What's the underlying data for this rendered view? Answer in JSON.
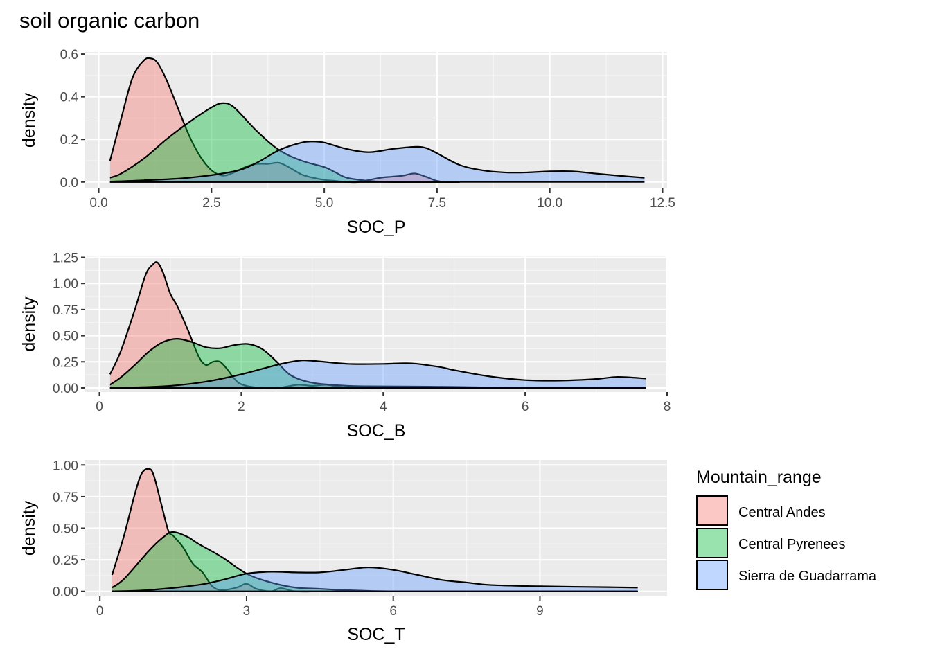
{
  "title": "soil organic carbon",
  "legend": {
    "title": "Mountain_range",
    "position": "right",
    "entries": [
      {
        "name": "Central Andes",
        "color": "#F8766D"
      },
      {
        "name": "Central Pyrenees",
        "color": "#00BA38"
      },
      {
        "name": "Sierra de Guadarrama",
        "color": "#619CFF"
      }
    ]
  },
  "chart_data": [
    {
      "type": "area",
      "xlabel": "SOC_P",
      "ylabel": "density",
      "xlim": [
        -0.3,
        12.6
      ],
      "ylim": [
        -0.03,
        0.61
      ],
      "xticks": [
        0,
        2.5,
        5,
        7.5,
        10,
        12.5
      ],
      "xtick_labels": [
        "0.0",
        "2.5",
        "5.0",
        "7.5",
        "10.0",
        "12.5"
      ],
      "yticks": [
        0,
        0.2,
        0.4,
        0.6
      ],
      "ytick_labels": [
        "0.0",
        "0.2",
        "0.4",
        "0.6"
      ],
      "grid": true,
      "series": [
        {
          "name": "Central Andes",
          "x": [
            0.25,
            0.5,
            0.75,
            1.0,
            1.15,
            1.3,
            1.5,
            1.75,
            2.0,
            2.25,
            2.5,
            2.75,
            3.0,
            3.25,
            3.5,
            3.75,
            4.0,
            4.25,
            4.5,
            4.75,
            5.0,
            5.25,
            5.5,
            5.75,
            6.0,
            6.25,
            6.5,
            6.75,
            7.0,
            7.25,
            7.5,
            7.75,
            8.0
          ],
          "y": [
            0.1,
            0.3,
            0.49,
            0.57,
            0.58,
            0.56,
            0.48,
            0.35,
            0.22,
            0.12,
            0.055,
            0.03,
            0.045,
            0.07,
            0.085,
            0.085,
            0.09,
            0.065,
            0.035,
            0.02,
            0.01,
            0.005,
            0.0,
            0.0,
            0.01,
            0.02,
            0.025,
            0.03,
            0.04,
            0.025,
            0.005,
            0.0,
            0.0
          ]
        },
        {
          "name": "Central Pyrenees",
          "x": [
            0.25,
            0.5,
            1.0,
            1.5,
            2.0,
            2.5,
            2.75,
            3.0,
            3.5,
            4.0,
            4.5,
            5.0,
            5.25,
            5.5,
            6.0,
            6.5,
            7.0,
            7.5,
            8.0
          ],
          "y": [
            0.02,
            0.04,
            0.11,
            0.2,
            0.28,
            0.35,
            0.37,
            0.35,
            0.24,
            0.15,
            0.1,
            0.07,
            0.045,
            0.02,
            0.005,
            0.0,
            0.0,
            0.0,
            0.0
          ]
        },
        {
          "name": "Sierra de Guadarrama",
          "x": [
            0.25,
            1.0,
            2.0,
            3.0,
            3.5,
            4.0,
            4.5,
            4.75,
            5.0,
            5.5,
            6.0,
            6.5,
            7.0,
            7.25,
            7.5,
            8.0,
            8.5,
            9.0,
            9.5,
            10.0,
            10.5,
            11.0,
            11.5,
            12.1
          ],
          "y": [
            0.002,
            0.008,
            0.02,
            0.05,
            0.09,
            0.15,
            0.185,
            0.19,
            0.185,
            0.155,
            0.14,
            0.155,
            0.165,
            0.16,
            0.135,
            0.08,
            0.055,
            0.045,
            0.045,
            0.05,
            0.05,
            0.04,
            0.03,
            0.02
          ]
        }
      ]
    },
    {
      "type": "area",
      "xlabel": "SOC_B",
      "ylabel": "density",
      "xlim": [
        -0.2,
        8.0
      ],
      "ylim": [
        -0.04,
        1.26
      ],
      "xticks": [
        0,
        2,
        4,
        6,
        8
      ],
      "xtick_labels": [
        "0",
        "2",
        "4",
        "6",
        "8"
      ],
      "yticks": [
        0,
        0.25,
        0.5,
        0.75,
        1.0,
        1.25
      ],
      "ytick_labels": [
        "0.00",
        "0.25",
        "0.50",
        "0.75",
        "1.00",
        "1.25"
      ],
      "grid": true,
      "series": [
        {
          "name": "Central Andes",
          "x": [
            0.15,
            0.3,
            0.5,
            0.65,
            0.75,
            0.82,
            0.9,
            1.0,
            1.1,
            1.25,
            1.4,
            1.5,
            1.6,
            1.7,
            1.8,
            1.9,
            2.0,
            2.2,
            2.5,
            2.8,
            3.0,
            3.2,
            3.5,
            4.0,
            5.0,
            6.0,
            7.7
          ],
          "y": [
            0.13,
            0.35,
            0.75,
            1.08,
            1.18,
            1.2,
            1.1,
            0.9,
            0.78,
            0.55,
            0.3,
            0.22,
            0.25,
            0.25,
            0.18,
            0.09,
            0.035,
            0.005,
            0.0,
            0.03,
            0.02,
            0.03,
            0.0,
            0.0,
            0.0,
            0.0,
            0.0
          ]
        },
        {
          "name": "Central Pyrenees",
          "x": [
            0.15,
            0.3,
            0.5,
            0.7,
            0.9,
            1.1,
            1.3,
            1.5,
            1.7,
            1.9,
            2.1,
            2.3,
            2.5,
            2.7,
            3.0,
            3.5,
            4.0,
            5.0,
            6.0,
            7.7
          ],
          "y": [
            0.03,
            0.1,
            0.22,
            0.35,
            0.44,
            0.47,
            0.44,
            0.39,
            0.38,
            0.41,
            0.42,
            0.37,
            0.25,
            0.12,
            0.05,
            0.02,
            0.015,
            0.01,
            0.0,
            0.0
          ]
        },
        {
          "name": "Sierra de Guadarrama",
          "x": [
            0.15,
            0.5,
            1.0,
            1.5,
            2.0,
            2.5,
            2.8,
            3.0,
            3.5,
            4.0,
            4.4,
            4.8,
            5.0,
            5.5,
            6.0,
            6.5,
            7.0,
            7.3,
            7.7
          ],
          "y": [
            0.0,
            0.005,
            0.02,
            0.06,
            0.13,
            0.22,
            0.26,
            0.26,
            0.23,
            0.23,
            0.235,
            0.2,
            0.17,
            0.11,
            0.075,
            0.07,
            0.085,
            0.105,
            0.09
          ]
        }
      ]
    },
    {
      "type": "area",
      "xlabel": "SOC_T",
      "ylabel": "density",
      "xlim": [
        -0.3,
        11.6
      ],
      "ylim": [
        -0.04,
        1.04
      ],
      "xticks": [
        0,
        3,
        6,
        9
      ],
      "xtick_labels": [
        "0",
        "3",
        "6",
        "9"
      ],
      "yticks": [
        0,
        0.25,
        0.5,
        0.75,
        1.0
      ],
      "ytick_labels": [
        "0.00",
        "0.25",
        "0.50",
        "0.75",
        "1.00"
      ],
      "grid": true,
      "series": [
        {
          "name": "Central Andes",
          "x": [
            0.25,
            0.5,
            0.7,
            0.85,
            1.0,
            1.1,
            1.25,
            1.4,
            1.5,
            1.7,
            1.9,
            2.1,
            2.3,
            2.5,
            2.8,
            3.0,
            3.2,
            3.5,
            3.7,
            4.0,
            4.5,
            5.0,
            6.0,
            8.0,
            11.0
          ],
          "y": [
            0.13,
            0.45,
            0.75,
            0.93,
            0.97,
            0.92,
            0.7,
            0.48,
            0.44,
            0.35,
            0.22,
            0.15,
            0.04,
            0.01,
            0.03,
            0.06,
            0.02,
            0.0,
            0.025,
            0.0,
            0.0,
            0.0,
            0.0,
            0.0,
            0.0
          ]
        },
        {
          "name": "Central Pyrenees",
          "x": [
            0.25,
            0.5,
            1.0,
            1.3,
            1.5,
            1.8,
            2.0,
            2.5,
            3.0,
            3.5,
            4.0,
            4.5,
            5.0,
            6.0,
            8.0,
            11.0
          ],
          "y": [
            0.03,
            0.1,
            0.32,
            0.43,
            0.47,
            0.43,
            0.38,
            0.27,
            0.14,
            0.07,
            0.03,
            0.02,
            0.01,
            0.0,
            0.0,
            0.0
          ]
        },
        {
          "name": "Sierra de Guadarrama",
          "x": [
            0.25,
            1.0,
            2.0,
            2.5,
            3.0,
            3.5,
            4.0,
            4.5,
            5.0,
            5.5,
            6.0,
            6.5,
            7.0,
            7.5,
            8.0,
            9.0,
            10.0,
            11.0
          ],
          "y": [
            0.0,
            0.01,
            0.05,
            0.09,
            0.14,
            0.155,
            0.15,
            0.15,
            0.17,
            0.19,
            0.17,
            0.13,
            0.09,
            0.07,
            0.05,
            0.04,
            0.035,
            0.03
          ]
        }
      ]
    }
  ]
}
